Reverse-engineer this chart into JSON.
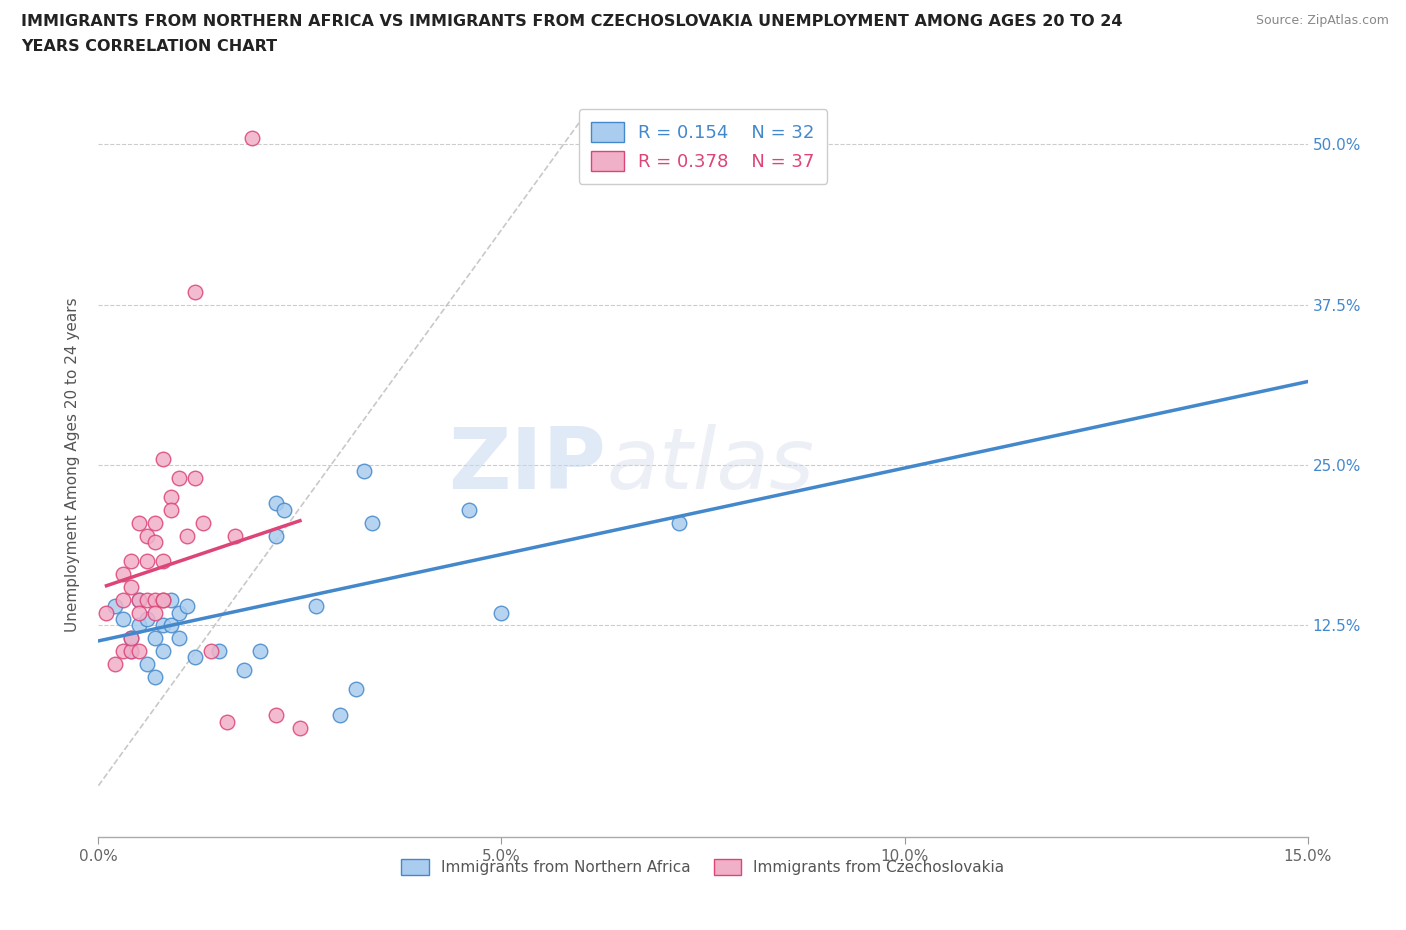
{
  "title_line1": "IMMIGRANTS FROM NORTHERN AFRICA VS IMMIGRANTS FROM CZECHOSLOVAKIA UNEMPLOYMENT AMONG AGES 20 TO 24",
  "title_line2": "YEARS CORRELATION CHART",
  "source": "Source: ZipAtlas.com",
  "ylabel": "Unemployment Among Ages 20 to 24 years",
  "xlim": [
    0.0,
    0.15
  ],
  "ylim": [
    -0.04,
    0.54
  ],
  "xticks": [
    0.0,
    0.05,
    0.1,
    0.15
  ],
  "xticklabels": [
    "0.0%",
    "5.0%",
    "10.0%",
    "15.0%"
  ],
  "yticks": [
    0.0,
    0.125,
    0.25,
    0.375,
    0.5
  ],
  "yticklabels_right": [
    "",
    "12.5%",
    "25.0%",
    "37.5%",
    "50.0%"
  ],
  "grid_color": "#cccccc",
  "background_color": "#ffffff",
  "watermark_zip": "ZIP",
  "watermark_atlas": "atlas",
  "legend_R1": "R = 0.154",
  "legend_N1": "N = 32",
  "legend_R2": "R = 0.378",
  "legend_N2": "N = 37",
  "series1_color": "#aaccee",
  "series2_color": "#f0b0c8",
  "line1_color": "#4488cc",
  "line2_color": "#dd4477",
  "ref_line_color": "#bbbbbb",
  "blue_x": [
    0.002,
    0.003,
    0.004,
    0.004,
    0.005,
    0.005,
    0.006,
    0.006,
    0.007,
    0.007,
    0.008,
    0.008,
    0.009,
    0.009,
    0.01,
    0.01,
    0.011,
    0.012,
    0.015,
    0.018,
    0.02,
    0.022,
    0.022,
    0.023,
    0.027,
    0.03,
    0.032,
    0.033,
    0.034,
    0.046,
    0.05,
    0.072
  ],
  "blue_y": [
    0.14,
    0.13,
    0.115,
    0.105,
    0.125,
    0.145,
    0.095,
    0.13,
    0.085,
    0.115,
    0.125,
    0.105,
    0.145,
    0.125,
    0.115,
    0.135,
    0.14,
    0.1,
    0.105,
    0.09,
    0.105,
    0.195,
    0.22,
    0.215,
    0.14,
    0.055,
    0.075,
    0.245,
    0.205,
    0.215,
    0.135,
    0.205
  ],
  "pink_x": [
    0.001,
    0.002,
    0.003,
    0.003,
    0.003,
    0.004,
    0.004,
    0.004,
    0.004,
    0.005,
    0.005,
    0.005,
    0.005,
    0.006,
    0.006,
    0.006,
    0.007,
    0.007,
    0.007,
    0.007,
    0.008,
    0.008,
    0.008,
    0.008,
    0.009,
    0.009,
    0.01,
    0.011,
    0.012,
    0.012,
    0.013,
    0.014,
    0.016,
    0.017,
    0.019,
    0.022,
    0.025
  ],
  "pink_y": [
    0.135,
    0.095,
    0.145,
    0.105,
    0.165,
    0.105,
    0.175,
    0.115,
    0.155,
    0.105,
    0.145,
    0.205,
    0.135,
    0.145,
    0.195,
    0.175,
    0.145,
    0.19,
    0.135,
    0.205,
    0.145,
    0.175,
    0.145,
    0.255,
    0.225,
    0.215,
    0.24,
    0.195,
    0.24,
    0.385,
    0.205,
    0.105,
    0.05,
    0.195,
    0.505,
    0.055,
    0.045
  ],
  "ref_line_x": [
    0.0,
    0.06
  ],
  "ref_line_y": [
    0.0,
    0.52
  ]
}
